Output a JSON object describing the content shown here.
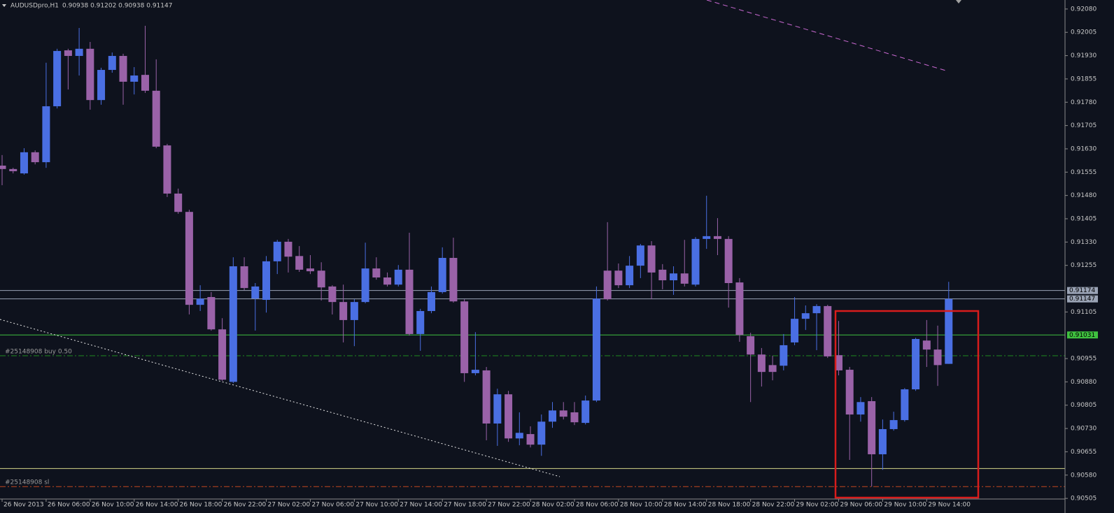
{
  "chart_data": {
    "type": "candlestick",
    "symbol": "AUDUSDpro,H1",
    "header_values": "0.90938 0.91202 0.90938 0.91147",
    "up_color": "#4a6fe3",
    "down_color": "#9a62a8",
    "background": "#0e121d",
    "ylim": [
      0.90458,
      0.92109
    ],
    "yticks": [
      {
        "value": 0.9208,
        "label": "0.92080"
      },
      0.92005,
      {
        "value": 0.9193,
        "label": "0.91930"
      },
      0.91855,
      {
        "value": 0.9178,
        "label": "0.91780"
      },
      0.91705,
      {
        "value": 0.9163,
        "label": "0.91630"
      },
      0.91555,
      {
        "value": 0.9148,
        "label": "0.91480"
      },
      0.91405,
      {
        "value": 0.9133,
        "label": "0.91330"
      },
      0.91255,
      0.91105,
      0.90955,
      {
        "value": 0.9088,
        "label": "0.90880"
      },
      0.90805,
      {
        "value": 0.9073,
        "label": "0.90730"
      },
      0.90655,
      {
        "value": 0.9058,
        "label": "0.90580"
      },
      0.90505
    ],
    "levels": [
      {
        "value": 0.91174,
        "color": "#9aa3b5",
        "badge": true
      },
      {
        "value": 0.91147,
        "color": "#9aa3b5",
        "badge": true
      },
      {
        "value": 0.91031,
        "color": "#3fc03f",
        "badge": true
      },
      {
        "value": 0.90964,
        "color": "#1f8a1f",
        "dash": true,
        "label": "#25148908 buy 0.50"
      },
      {
        "value": 0.90601,
        "color": "#d6d68a"
      },
      {
        "value": 0.90543,
        "color": "#c0461f",
        "dash": true,
        "label": "#25148908 sl"
      }
    ],
    "time_labels": [
      "26 Nov 2013",
      "26 Nov 06:00",
      "26 Nov 10:00",
      "26 Nov 14:00",
      "26 Nov 18:00",
      "26 Nov 22:00",
      "27 Nov 02:00",
      "27 Nov 06:00",
      "27 Nov 10:00",
      "27 Nov 14:00",
      "27 Nov 18:00",
      "27 Nov 22:00",
      "28 Nov 02:00",
      "28 Nov 06:00",
      "28 Nov 10:00",
      "28 Nov 14:00",
      "28 Nov 18:00",
      "28 Nov 22:00",
      "29 Nov 02:00",
      "29 Nov 06:00",
      "29 Nov 10:00",
      "29 Nov 14:00"
    ],
    "open": [
      0.91576,
      0.91565,
      0.91551,
      0.91619,
      0.91587,
      0.91767,
      0.91947,
      0.91929,
      0.91952,
      0.91787,
      0.91884,
      0.91929,
      0.91846,
      0.91868,
      0.91817,
      0.91641,
      0.91486,
      0.91427,
      0.91128,
      0.91153,
      0.91049,
      0.9088,
      0.91252,
      0.91148,
      0.91144,
      0.91268,
      0.91331,
      0.91285,
      0.91245,
      0.91238,
      0.91187,
      0.91137,
      0.91079,
      0.91137,
      0.91245,
      0.91216,
      0.91193,
      0.91241,
      0.91034,
      0.91108,
      0.91169,
      0.91279,
      0.91139,
      0.90908,
      0.90917,
      0.90746,
      0.9084,
      0.90698,
      0.90712,
      0.90678,
      0.90752,
      0.90788,
      0.90782,
      0.90748,
      0.9082,
      0.91238,
      0.91238,
      0.91191,
      0.91254,
      0.91319,
      0.91241,
      0.91207,
      0.91229,
      0.91193,
      0.9134,
      0.91349,
      0.9134,
      0.912,
      0.91027,
      0.90968,
      0.90934,
      0.90932,
      0.91007,
      0.91083,
      0.91101,
      0.91124,
      0.90966,
      0.90919,
      0.90775,
      0.90818,
      0.90647,
      0.90728,
      0.90757,
      0.90856,
      0.91013,
      0.90984,
      0.90938
    ],
    "high": [
      0.9161,
      0.91569,
      0.91632,
      0.91625,
      0.91907,
      0.91952,
      0.91952,
      0.92019,
      0.91974,
      0.91891,
      0.9194,
      0.91936,
      0.91893,
      0.92026,
      0.91918,
      0.91646,
      0.91502,
      0.91434,
      0.91191,
      0.91169,
      0.91085,
      0.91281,
      0.91281,
      0.91198,
      0.91285,
      0.91337,
      0.9134,
      0.91317,
      0.91288,
      0.91265,
      0.91191,
      0.91193,
      0.91146,
      0.91328,
      0.91281,
      0.91232,
      0.91256,
      0.9136,
      0.91115,
      0.91187,
      0.91313,
      0.91344,
      0.91146,
      0.9104,
      0.90928,
      0.90858,
      0.90851,
      0.90782,
      0.90737,
      0.90775,
      0.90815,
      0.90815,
      0.90815,
      0.90836,
      0.91187,
      0.91394,
      0.91261,
      0.91285,
      0.91324,
      0.91333,
      0.91259,
      0.91252,
      0.91337,
      0.91346,
      0.91479,
      0.91407,
      0.91349,
      0.91214,
      0.91038,
      0.90989,
      0.90964,
      0.91034,
      0.91153,
      0.91126,
      0.9113,
      0.91128,
      0.91076,
      0.90928,
      0.90831,
      0.90831,
      0.90759,
      0.90784,
      0.9086,
      0.91022,
      0.91079,
      0.91061,
      0.91202
    ],
    "low": [
      0.91513,
      0.91551,
      0.91547,
      0.9158,
      0.91569,
      0.9176,
      0.91821,
      0.91866,
      0.91756,
      0.91772,
      0.91875,
      0.91772,
      0.91805,
      0.9181,
      0.91632,
      0.91475,
      0.91421,
      0.91097,
      0.91108,
      0.91045,
      0.90883,
      0.90876,
      0.91175,
      0.91045,
      0.91103,
      0.91227,
      0.91232,
      0.91234,
      0.91227,
      0.91142,
      0.91097,
      0.91007,
      0.90995,
      0.91133,
      0.91209,
      0.91187,
      0.91187,
      0.91029,
      0.9098,
      0.91101,
      0.91164,
      0.91135,
      0.9088,
      0.90901,
      0.90692,
      0.90674,
      0.90687,
      0.90676,
      0.90669,
      0.90642,
      0.90732,
      0.90759,
      0.90741,
      0.90743,
      0.90815,
      0.91142,
      0.91182,
      0.91182,
      0.91214,
      0.91146,
      0.91178,
      0.9116,
      0.91187,
      0.91187,
      0.91308,
      0.91288,
      0.91119,
      0.91009,
      0.90815,
      0.90865,
      0.90885,
      0.90917,
      0.90998,
      0.91047,
      0.90982,
      0.90957,
      0.90901,
      0.90629,
      0.90752,
      0.90543,
      0.90597,
      0.90723,
      0.90752,
      0.90851,
      0.90928,
      0.90867,
      0.90938
    ],
    "close": [
      0.91565,
      0.91558,
      0.91619,
      0.91587,
      0.91767,
      0.91945,
      0.91929,
      0.91952,
      0.91787,
      0.91884,
      0.91929,
      0.91846,
      0.91866,
      0.91817,
      0.91637,
      0.91486,
      0.91427,
      0.91128,
      0.91148,
      0.91049,
      0.90887,
      0.91252,
      0.91182,
      0.91187,
      0.91268,
      0.91331,
      0.91283,
      0.91241,
      0.91236,
      0.91184,
      0.91137,
      0.91079,
      0.91137,
      0.91245,
      0.91216,
      0.91193,
      0.91241,
      0.91034,
      0.91108,
      0.91169,
      0.91279,
      0.91139,
      0.90908,
      0.90919,
      0.90746,
      0.9084,
      0.90698,
      0.90716,
      0.90678,
      0.90752,
      0.90788,
      0.90768,
      0.9075,
      0.9082,
      0.91148,
      0.91146,
      0.91191,
      0.91254,
      0.91319,
      0.91232,
      0.91207,
      0.91229,
      0.91196,
      0.9134,
      0.91349,
      0.9134,
      0.91198,
      0.91031,
      0.90968,
      0.90912,
      0.90912,
      0.90998,
      0.91083,
      0.91101,
      0.91124,
      0.90962,
      0.90917,
      0.90775,
      0.90815,
      0.90647,
      0.90728,
      0.90757,
      0.90856,
      0.91018,
      0.90984,
      0.90934,
      0.91147
    ]
  }
}
